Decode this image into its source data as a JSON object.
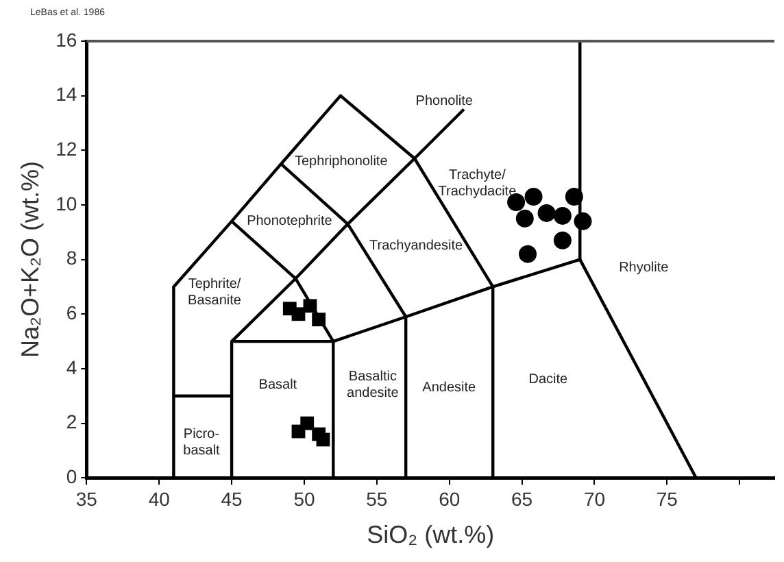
{
  "chart_data": {
    "type": "scatter",
    "xlabel": "SiO₂ (wt.%)",
    "ylabel": "Na₂O+K₂O (wt.%)",
    "xlim": [
      35,
      82.4
    ],
    "xticks": [
      35,
      40,
      45,
      50,
      55,
      60,
      65,
      70,
      75,
      {
        "value": 80,
        "label": null
      }
    ],
    "ylim": [
      0,
      16
    ],
    "yticks": [
      0,
      2,
      4,
      6,
      8,
      10,
      12,
      14,
      16
    ],
    "grid": false,
    "legend": false,
    "series": [
      {
        "type": "line",
        "color": "#000000",
        "marker": "none",
        "x": [
          41,
          41,
          45,
          48.4,
          52.5,
          57.6,
          63,
          69,
          77
        ],
        "values": [
          0,
          7,
          9.4,
          11.5,
          14,
          11.7,
          7,
          8,
          0
        ]
      },
      {
        "type": "line",
        "color": "#000000",
        "marker": "none",
        "x": [
          41,
          45
        ],
        "values": [
          3,
          3
        ]
      },
      {
        "type": "line",
        "color": "#000000",
        "marker": "none",
        "x": [
          45,
          45,
          49.4,
          53,
          57.6,
          61
        ],
        "values": [
          0,
          5,
          7.3,
          9.3,
          11.7,
          13.5
        ]
      },
      {
        "type": "line",
        "color": "#000000",
        "marker": "none",
        "x": [
          45,
          52,
          52
        ],
        "values": [
          5,
          5,
          0
        ]
      },
      {
        "type": "line",
        "color": "#000000",
        "marker": "none",
        "x": [
          52,
          57,
          57
        ],
        "values": [
          5,
          5.9,
          0
        ]
      },
      {
        "type": "line",
        "color": "#000000",
        "marker": "none",
        "x": [
          57,
          63,
          63
        ],
        "values": [
          5.9,
          7,
          0
        ]
      },
      {
        "type": "line",
        "color": "#000000",
        "marker": "none",
        "x": [
          45,
          49.4,
          52
        ],
        "values": [
          9.4,
          7.3,
          5
        ]
      },
      {
        "type": "line",
        "color": "#000000",
        "marker": "none",
        "x": [
          48.4,
          53,
          57
        ],
        "values": [
          11.5,
          9.3,
          5.9
        ]
      },
      {
        "type": "line",
        "color": "#000000",
        "marker": "none",
        "x": [
          69,
          69
        ],
        "values": [
          8,
          16
        ]
      },
      {
        "color": "#000000",
        "marker": "square",
        "x": [
          49.6,
          50.4,
          51.0,
          49.0,
          49.6,
          50.2,
          51.0,
          51.3
        ],
        "values": [
          6.0,
          6.3,
          5.8,
          6.2,
          1.7,
          2.0,
          1.6,
          1.4
        ]
      },
      {
        "color": "#000000",
        "marker": "circle",
        "x": [
          64.6,
          65.8,
          65.2,
          66.7,
          67.8,
          68.6,
          69.2,
          67.8,
          65.4
        ],
        "values": [
          10.1,
          10.3,
          9.5,
          9.7,
          9.6,
          10.3,
          9.4,
          8.7,
          8.2
        ]
      }
    ],
    "annotations": [
      "LeBas et al. 1986",
      "Phonolite",
      "Tephriphonolite",
      "Phonotephrite",
      "Tephrite/\nBasanite",
      "Trachyte/\nTrachydacite",
      "Trachyandesite",
      "Basalt",
      "Basaltic\nandesite",
      "Andesite",
      "Dacite",
      "Rhyolite",
      "Picro-\nbasalt"
    ]
  }
}
